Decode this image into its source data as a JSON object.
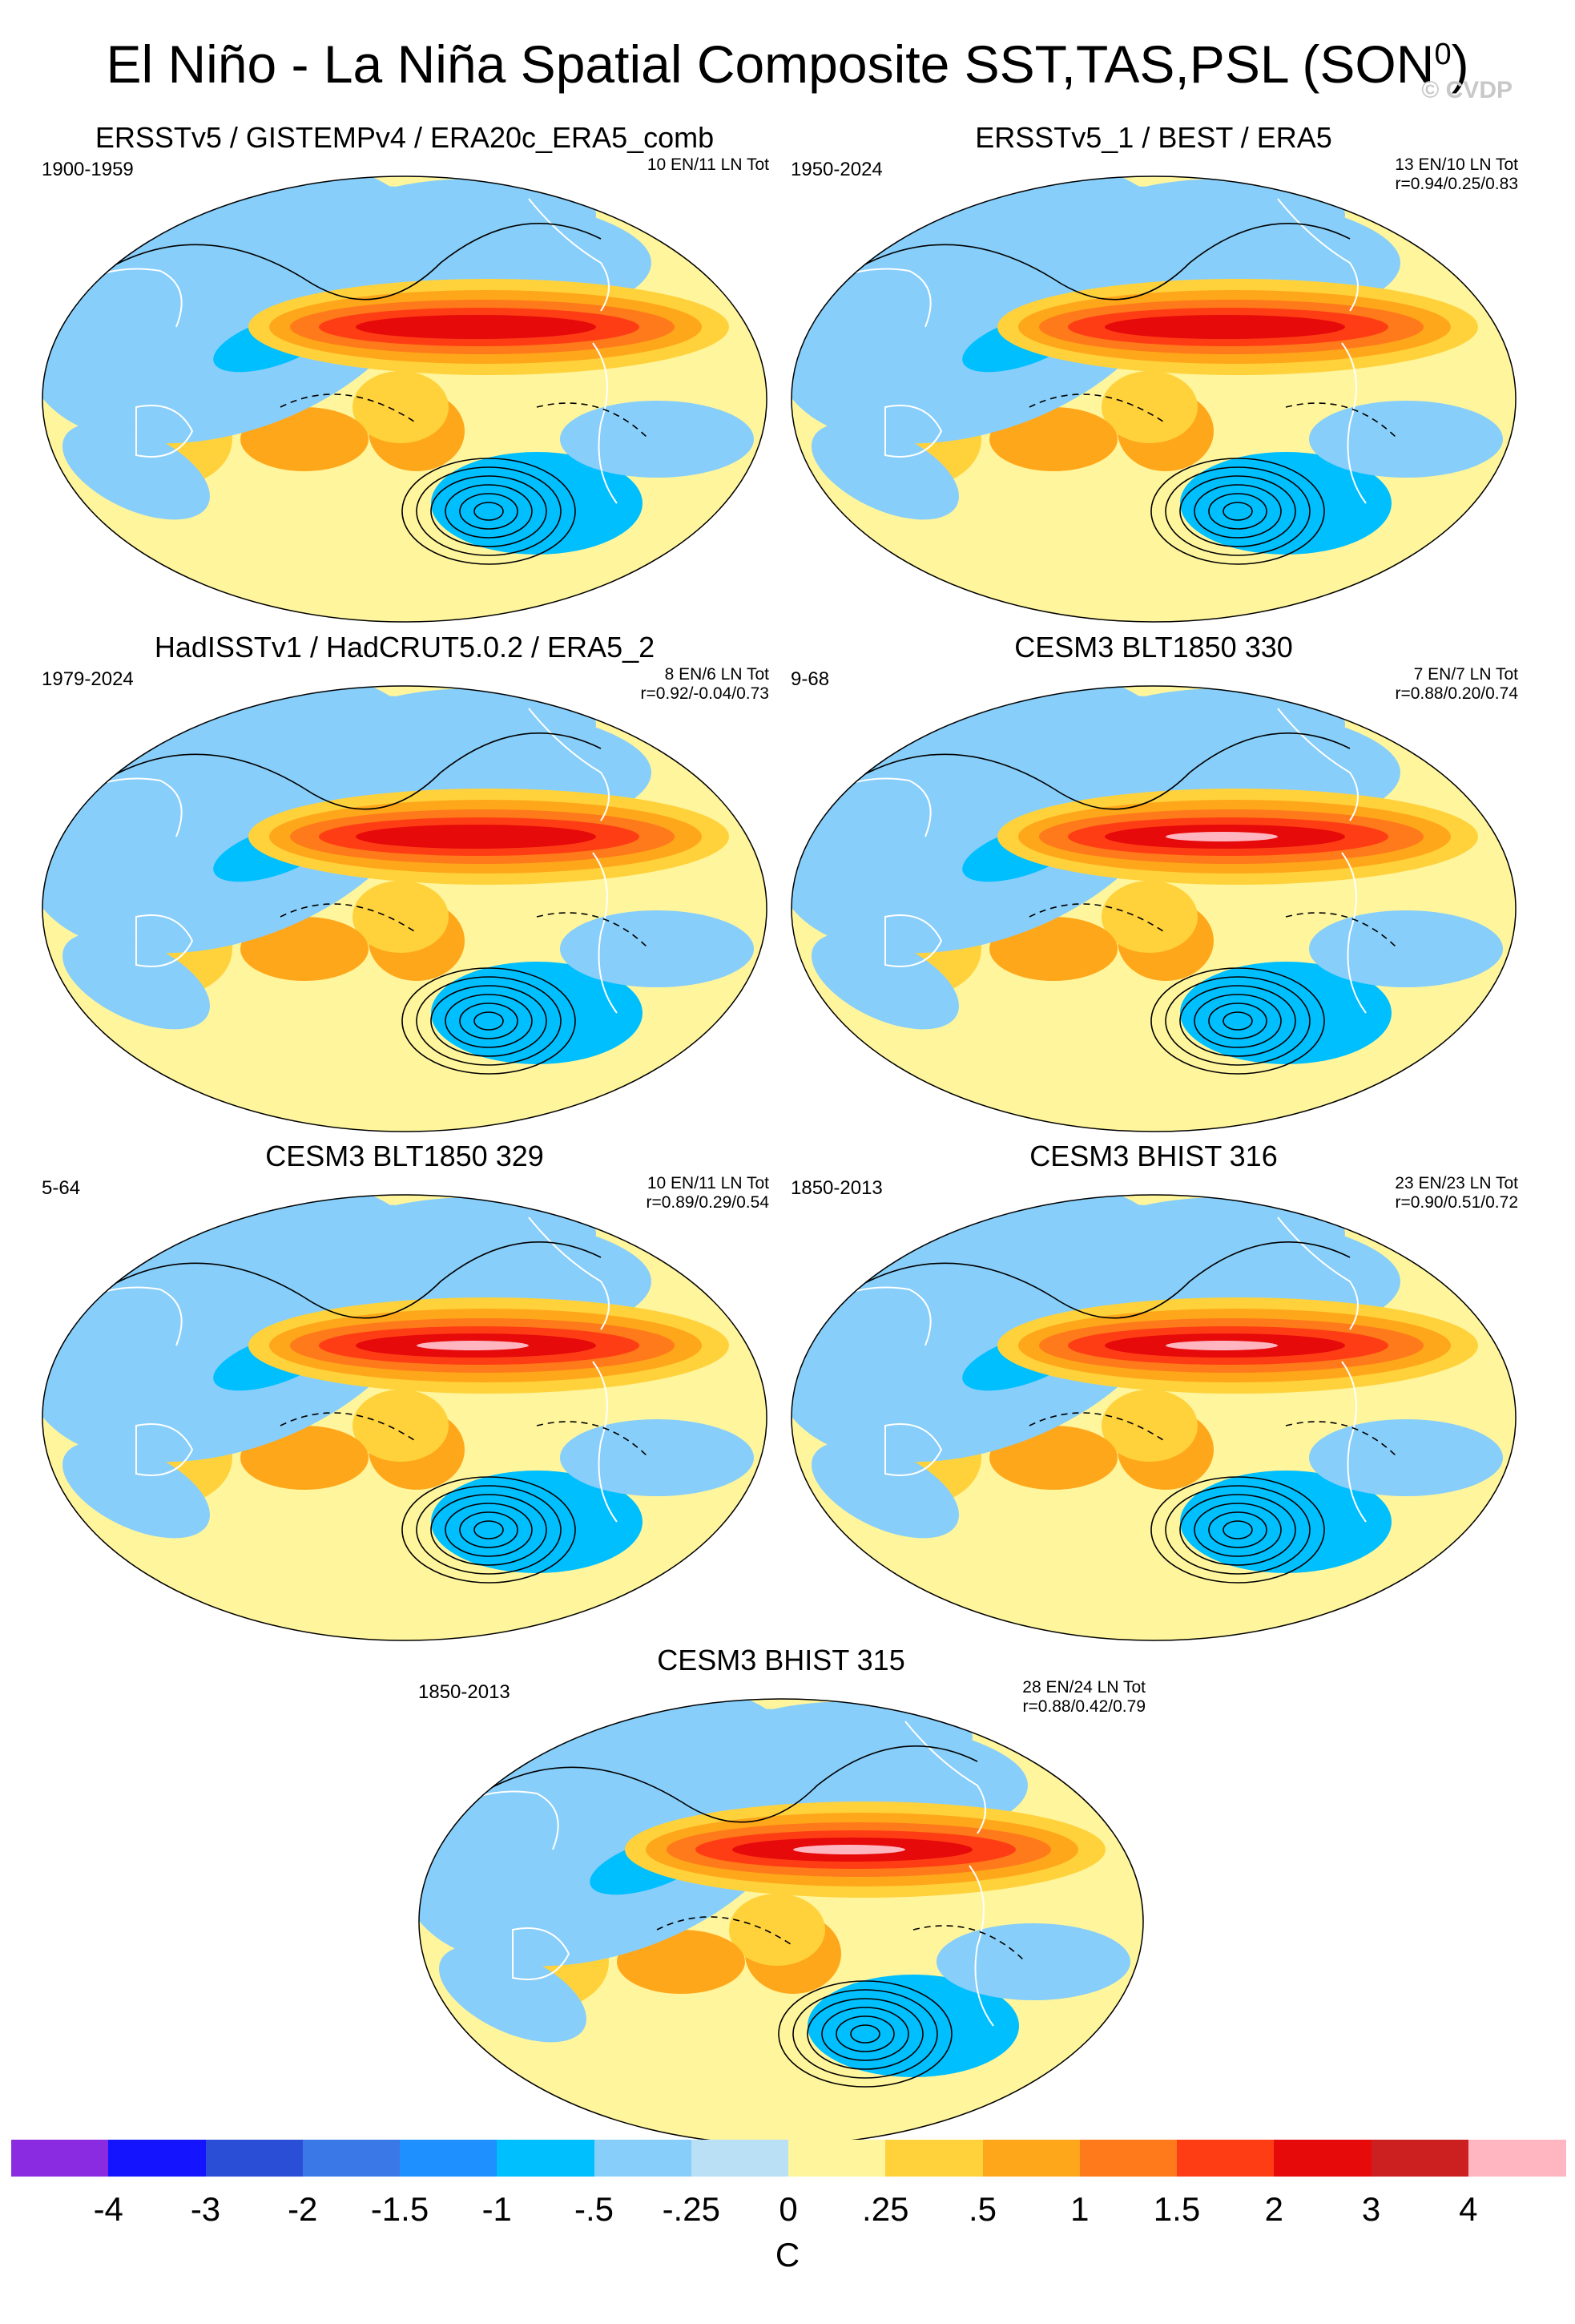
{
  "title": "El Niño - La Niña Spatial Composite SST,TAS,PSL (SON",
  "title_sup": "0",
  "title_close": ")",
  "watermark": "© CVDP",
  "colors": {
    "palette": [
      "#8a2be2",
      "#1414ff",
      "#2a4fd6",
      "#3a78e8",
      "#1e90ff",
      "#00bfff",
      "#87cefa",
      "#b9e0f5",
      "#fff59d",
      "#ffd23c",
      "#ffa71a",
      "#ff7a1a",
      "#ff3d14",
      "#e60a0a",
      "#cc1f1f",
      "#ffb6c1"
    ],
    "land_line": "#ffffff",
    "contour": "#000000"
  },
  "chart_data": [
    {
      "type": "heatmap",
      "title": "ERSSTv5 / GISTEMPv4 / ERA20c_ERA5_comb",
      "years": "1900-1959",
      "stats_line1": "10 EN/11 LN Tot",
      "stats_line2": "",
      "variables": [
        "SST",
        "TAS",
        "PSL"
      ]
    },
    {
      "type": "heatmap",
      "title": "ERSSTv5_1 / BEST / ERA5",
      "years": "1950-2024",
      "stats_line1": "13 EN/10 LN Tot",
      "stats_line2": "r=0.94/0.25/0.83",
      "variables": [
        "SST",
        "TAS",
        "PSL"
      ]
    },
    {
      "type": "heatmap",
      "title": "HadISSTv1 / HadCRUT5.0.2 / ERA5_2",
      "years": "1979-2024",
      "stats_line1": "8 EN/6 LN Tot",
      "stats_line2": "r=0.92/-0.04/0.73",
      "variables": [
        "SST",
        "TAS",
        "PSL"
      ]
    },
    {
      "type": "heatmap",
      "title": "CESM3 BLT1850 330",
      "years": "9-68",
      "stats_line1": "7 EN/7 LN Tot",
      "stats_line2": "r=0.88/0.20/0.74",
      "variables": [
        "SST",
        "TAS",
        "PSL"
      ]
    },
    {
      "type": "heatmap",
      "title": "CESM3 BLT1850 329",
      "years": "5-64",
      "stats_line1": "10 EN/11 LN Tot",
      "stats_line2": "r=0.89/0.29/0.54",
      "variables": [
        "SST",
        "TAS",
        "PSL"
      ]
    },
    {
      "type": "heatmap",
      "title": "CESM3 BHIST 316",
      "years": "1850-2013",
      "stats_line1": "23 EN/23 LN Tot",
      "stats_line2": "r=0.90/0.51/0.72",
      "variables": [
        "SST",
        "TAS",
        "PSL"
      ]
    },
    {
      "type": "heatmap",
      "title": "CESM3 BHIST 315",
      "years": "1850-2013",
      "stats_line1": "28 EN/24 LN Tot",
      "stats_line2": "r=0.88/0.42/0.79",
      "variables": [
        "SST",
        "TAS",
        "PSL"
      ]
    }
  ],
  "colorbar": {
    "labels": [
      "-4",
      "-3",
      "-2",
      "-1.5",
      "-1",
      "-.5",
      "-.25",
      "0",
      ".25",
      ".5",
      "1",
      "1.5",
      "2",
      "3",
      "4"
    ],
    "unit": "C",
    "range": [
      -4,
      4
    ],
    "n_bins": 16
  }
}
